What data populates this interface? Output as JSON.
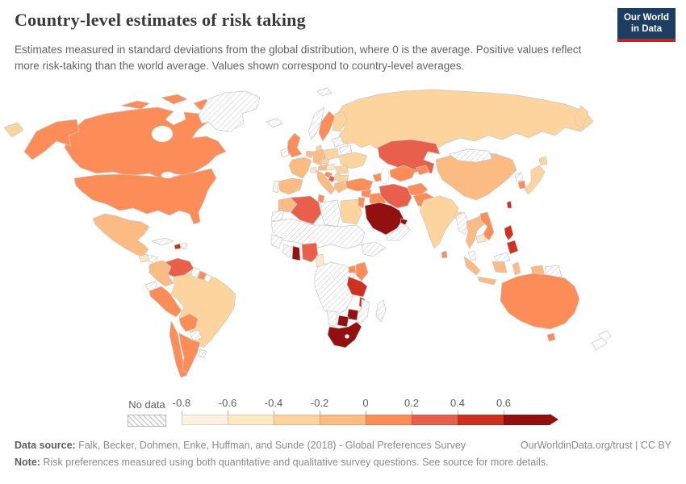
{
  "header": {
    "title": "Country-level estimates of risk taking",
    "subtitle": "Estimates measured in standard deviations from the global distribution, where 0 is the average. Positive values reflect more risk-taking than the world average. Values shown correspond to country-level averages."
  },
  "logo": {
    "line1": "Our World",
    "line2": "in Data",
    "bg": "#1d3d63",
    "accent": "#bf2624"
  },
  "legend": {
    "no_data_label": "No data",
    "ticks": [
      "-0.8",
      "-0.6",
      "-0.4",
      "-0.2",
      "0",
      "0.2",
      "0.4",
      "0.6"
    ]
  },
  "footer": {
    "source_label": "Data source:",
    "source_text": " Falk, Becker, Dohmen, Enke, Huffman, and Sunde (2018) - Global Preferences Survey",
    "attribution": "OurWorldinData.org/trust | CC BY",
    "note_label": "Note:",
    "note_text": " Risk preferences measured using both quantitative and qualitative survey questions. See source for more details."
  },
  "chart_data": {
    "type": "choropleth",
    "title": "Country-level estimates of risk taking",
    "unit": "standard deviations from the global average",
    "legend_ticks": [
      -0.8,
      -0.6,
      -0.4,
      -0.2,
      0,
      0.2,
      0.4,
      0.6
    ],
    "no_data": {
      "label": "No data",
      "pattern": "hatched"
    },
    "bins": [
      {
        "range": "-0.8 to -0.6",
        "color": "#fdf2e1"
      },
      {
        "range": "-0.6 to -0.4",
        "color": "#fde8c6"
      },
      {
        "range": "-0.4 to -0.2",
        "color": "#fdd49e"
      },
      {
        "range": "-0.2 to 0",
        "color": "#fdbb84"
      },
      {
        "range": "0 to 0.2",
        "color": "#fc8d59"
      },
      {
        "range": "0.2 to 0.4",
        "color": "#e8604c"
      },
      {
        "range": "0.4 to 0.6",
        "color": "#d0301f"
      },
      {
        "range": "more than 0.6",
        "color": "#931010"
      }
    ],
    "countries": [
      {
        "id": "canada",
        "name": "Canada",
        "bin": "0 to 0.2",
        "color": "#fc8d59"
      },
      {
        "id": "usa",
        "name": "United States",
        "bin": "0 to 0.2",
        "color": "#fc8d59"
      },
      {
        "id": "greenland",
        "name": "Greenland",
        "bin": "no-data",
        "color": "no-data"
      },
      {
        "id": "mexico",
        "name": "Mexico",
        "bin": "-0.2 to 0",
        "color": "#fdbb84"
      },
      {
        "id": "guatemala",
        "name": "Guatemala",
        "bin": "-0.6 to -0.4",
        "color": "#fde8c6"
      },
      {
        "id": "honduras",
        "name": "Honduras",
        "bin": "no-data",
        "color": "no-data"
      },
      {
        "id": "nicaragua",
        "name": "Nicaragua",
        "bin": "-0.6 to -0.4",
        "color": "#fde8c6"
      },
      {
        "id": "costa-rica",
        "name": "Costa Rica",
        "bin": "0.2 to 0.4",
        "color": "#e8604c"
      },
      {
        "id": "panama",
        "name": "Panama",
        "bin": "no-data",
        "color": "#ffffff"
      },
      {
        "id": "cuba",
        "name": "Cuba",
        "bin": "no-data",
        "color": "no-data"
      },
      {
        "id": "haiti",
        "name": "Haiti",
        "bin": "0.4 to 0.6",
        "color": "#d0301f"
      },
      {
        "id": "dominican-republic",
        "name": "Dominican Republic",
        "bin": "no-data",
        "color": "no-data"
      },
      {
        "id": "colombia",
        "name": "Colombia",
        "bin": "-0.2 to 0",
        "color": "#fdbb84"
      },
      {
        "id": "venezuela",
        "name": "Venezuela",
        "bin": "0.2 to 0.4",
        "color": "#e8604c"
      },
      {
        "id": "guyana",
        "name": "Guyana",
        "bin": "no-data",
        "color": "no-data"
      },
      {
        "id": "suriname",
        "name": "Suriname",
        "bin": "0 to 0.2",
        "color": "#fc8d59"
      },
      {
        "id": "french-guiana",
        "name": "French Guiana",
        "bin": "no-data",
        "color": "#ffffff"
      },
      {
        "id": "ecuador",
        "name": "Ecuador",
        "bin": "no-data",
        "color": "no-data"
      },
      {
        "id": "peru",
        "name": "Peru",
        "bin": "0 to 0.2",
        "color": "#fc8d59"
      },
      {
        "id": "brazil",
        "name": "Brazil",
        "bin": "-0.4 to -0.2",
        "color": "#fdd49e"
      },
      {
        "id": "bolivia",
        "name": "Bolivia",
        "bin": "0 to 0.2",
        "color": "#fc8d59"
      },
      {
        "id": "paraguay",
        "name": "Paraguay",
        "bin": "no-data",
        "color": "no-data"
      },
      {
        "id": "chile",
        "name": "Chile",
        "bin": "0 to 0.2",
        "color": "#fc8d59"
      },
      {
        "id": "argentina",
        "name": "Argentina",
        "bin": "0 to 0.2",
        "color": "#fc8d59"
      },
      {
        "id": "uruguay",
        "name": "Uruguay",
        "bin": "no-data",
        "color": "no-data"
      },
      {
        "id": "iceland",
        "name": "Iceland",
        "bin": "no-data",
        "color": "no-data"
      },
      {
        "id": "norway",
        "name": "Norway",
        "bin": "no-data",
        "color": "no-data"
      },
      {
        "id": "sweden",
        "name": "Sweden",
        "bin": "0 to 0.2",
        "color": "#fc8d59"
      },
      {
        "id": "finland",
        "name": "Finland",
        "bin": "-0.4 to -0.2",
        "color": "#fdd49e"
      },
      {
        "id": "uk",
        "name": "United Kingdom",
        "bin": "0 to 0.2",
        "color": "#fc8d59"
      },
      {
        "id": "ireland",
        "name": "Ireland",
        "bin": "no-data",
        "color": "no-data"
      },
      {
        "id": "denmark",
        "name": "Denmark",
        "bin": "-0.4 to -0.2",
        "color": "#fdd49e"
      },
      {
        "id": "germany",
        "name": "Germany",
        "bin": "-0.2 to 0",
        "color": "#fdbb84"
      },
      {
        "id": "benelux",
        "name": "Netherlands / Belgium",
        "bin": "-0.2 to 0",
        "color": "#fdbb84"
      },
      {
        "id": "france",
        "name": "France",
        "bin": "-0.2 to 0",
        "color": "#fdbb84"
      },
      {
        "id": "spain",
        "name": "Spain",
        "bin": "-0.2 to 0",
        "color": "#fdbb84"
      },
      {
        "id": "portugal",
        "name": "Portugal",
        "bin": "-0.8 to -0.6",
        "color": "#fdf2e1"
      },
      {
        "id": "italy",
        "name": "Italy",
        "bin": "-0.2 to 0",
        "color": "#fdbb84"
      },
      {
        "id": "switzerland",
        "name": "Switzerland",
        "bin": "-0.6 to -0.4",
        "color": "#fde8c6"
      },
      {
        "id": "austria",
        "name": "Austria",
        "bin": "-0.2 to 0",
        "color": "#fdbb84"
      },
      {
        "id": "czechia",
        "name": "Czechia",
        "bin": "-0.4 to -0.2",
        "color": "#fdd49e"
      },
      {
        "id": "poland",
        "name": "Poland",
        "bin": "-0.4 to -0.2",
        "color": "#fdd49e"
      },
      {
        "id": "baltics",
        "name": "Estonia / Latvia / Lithuania",
        "bin": "no-data",
        "color": "no-data"
      },
      {
        "id": "belarus",
        "name": "Belarus",
        "bin": "no-data",
        "color": "no-data"
      },
      {
        "id": "ukraine",
        "name": "Ukraine",
        "bin": "-0.4 to -0.2",
        "color": "#fdd49e"
      },
      {
        "id": "romania",
        "name": "Romania",
        "bin": "-0.4 to -0.2",
        "color": "#fdd49e"
      },
      {
        "id": "hungary",
        "name": "Hungary",
        "bin": "-0.6 to -0.4",
        "color": "#fde8c6"
      },
      {
        "id": "croatia",
        "name": "Croatia",
        "bin": "0 to 0.2",
        "color": "#fc8d59"
      },
      {
        "id": "bosnia",
        "name": "Bosnia and Herzegovina",
        "bin": "0.2 to 0.4",
        "color": "#e8604c"
      },
      {
        "id": "serbia",
        "name": "Serbia",
        "bin": "-0.4 to -0.2",
        "color": "#fdd49e"
      },
      {
        "id": "bulgaria",
        "name": "Bulgaria",
        "bin": "-0.4 to -0.2",
        "color": "#fdd49e"
      },
      {
        "id": "greece",
        "name": "Greece",
        "bin": "-0.2 to 0",
        "color": "#fdbb84"
      },
      {
        "id": "russia",
        "name": "Russia",
        "bin": "-0.4 to -0.2",
        "color": "#fdd49e"
      },
      {
        "id": "kazakhstan",
        "name": "Kazakhstan",
        "bin": "0.2 to 0.4",
        "color": "#e8604c"
      },
      {
        "id": "uzbek-turkmen",
        "name": "Uzbekistan / Turkmenistan",
        "bin": "0 to 0.2",
        "color": "#fc8d59"
      },
      {
        "id": "kyrgyz-tajik",
        "name": "Kyrgyzstan / Tajikistan",
        "bin": "0 to 0.2",
        "color": "#fc8d59"
      },
      {
        "id": "caucasus",
        "name": "Georgia / Armenia / Azerbaijan",
        "bin": "0 to 0.2",
        "color": "#fc8d59"
      },
      {
        "id": "turkey",
        "name": "Turkey",
        "bin": "0 to 0.2",
        "color": "#fc8d59"
      },
      {
        "id": "syria",
        "name": "Syria",
        "bin": "0 to 0.2",
        "color": "#fc8d59"
      },
      {
        "id": "israel-jordan",
        "name": "Israel / Jordan",
        "bin": "0 to 0.2",
        "color": "#fc8d59"
      },
      {
        "id": "iraq",
        "name": "Iraq",
        "bin": "0 to 0.2",
        "color": "#fc8d59"
      },
      {
        "id": "saudi-arabia",
        "name": "Saudi Arabia",
        "bin": "more than 0.6",
        "color": "#931010"
      },
      {
        "id": "uae",
        "name": "United Arab Emirates",
        "bin": "more than 0.6",
        "color": "#931010"
      },
      {
        "id": "yemen-oman",
        "name": "Yemen / Oman",
        "bin": "no-data",
        "color": "no-data"
      },
      {
        "id": "iran",
        "name": "Iran",
        "bin": "0.2 to 0.4",
        "color": "#e8604c"
      },
      {
        "id": "afghanistan",
        "name": "Afghanistan",
        "bin": "0 to 0.2",
        "color": "#fc8d59"
      },
      {
        "id": "pakistan",
        "name": "Pakistan",
        "bin": "0 to 0.2",
        "color": "#fc8d59"
      },
      {
        "id": "india",
        "name": "India",
        "bin": "-0.4 to -0.2",
        "color": "#fdd49e"
      },
      {
        "id": "bangladesh",
        "name": "Bangladesh",
        "bin": "-0.4 to -0.2",
        "color": "#fdd49e"
      },
      {
        "id": "sri-lanka",
        "name": "Sri Lanka",
        "bin": "0 to 0.2",
        "color": "#fc8d59"
      },
      {
        "id": "china",
        "name": "China",
        "bin": "-0.2 to 0",
        "color": "#fdbb84"
      },
      {
        "id": "mongolia",
        "name": "Mongolia",
        "bin": "no-data",
        "color": "no-data"
      },
      {
        "id": "north-korea",
        "name": "North Korea",
        "bin": "no-data",
        "color": "no-data"
      },
      {
        "id": "south-korea",
        "name": "South Korea",
        "bin": "0 to 0.2",
        "color": "#fc8d59"
      },
      {
        "id": "japan",
        "name": "Japan",
        "bin": "-0.4 to -0.2",
        "color": "#fdd49e"
      },
      {
        "id": "taiwan",
        "name": "Taiwan",
        "bin": "0.4 to 0.6",
        "color": "#d0301f"
      },
      {
        "id": "myanmar",
        "name": "Myanmar",
        "bin": "no-data",
        "color": "no-data"
      },
      {
        "id": "thailand",
        "name": "Thailand",
        "bin": "-0.2 to 0",
        "color": "#fdbb84"
      },
      {
        "id": "laos",
        "name": "Laos",
        "bin": "-0.2 to 0",
        "color": "#fdbb84"
      },
      {
        "id": "vietnam",
        "name": "Vietnam",
        "bin": "0 to 0.2",
        "color": "#fc8d59"
      },
      {
        "id": "cambodia",
        "name": "Cambodia",
        "bin": "-0.6 to -0.4",
        "color": "#fde8c6"
      },
      {
        "id": "malaysia",
        "name": "Malaysia",
        "bin": "no-data",
        "color": "no-data"
      },
      {
        "id": "indonesia",
        "name": "Indonesia",
        "bin": "-0.2 to 0",
        "color": "#fdbb84"
      },
      {
        "id": "png",
        "name": "Papua New Guinea",
        "bin": "no-data",
        "color": "no-data"
      },
      {
        "id": "philippines",
        "name": "Philippines",
        "bin": "0.4 to 0.6",
        "color": "#d0301f"
      },
      {
        "id": "australia",
        "name": "Australia",
        "bin": "0 to 0.2",
        "color": "#fc8d59"
      },
      {
        "id": "new-zealand",
        "name": "New Zealand",
        "bin": "no-data",
        "color": "#ffffff"
      },
      {
        "id": "morocco",
        "name": "Morocco",
        "bin": "-0.2 to 0",
        "color": "#fdbb84"
      },
      {
        "id": "western-sahara",
        "name": "Western Sahara",
        "bin": "no-data",
        "color": "no-data"
      },
      {
        "id": "algeria",
        "name": "Algeria",
        "bin": "0.2 to 0.4",
        "color": "#e8604c"
      },
      {
        "id": "tunisia",
        "name": "Tunisia",
        "bin": "0 to 0.2",
        "color": "#fc8d59"
      },
      {
        "id": "libya",
        "name": "Libya",
        "bin": "no-data",
        "color": "no-data"
      },
      {
        "id": "egypt",
        "name": "Egypt",
        "bin": "-0.4 to -0.2",
        "color": "#fdd49e"
      },
      {
        "id": "sahel",
        "name": "Mauritania / Mali / Niger / Chad / Sudan",
        "bin": "no-data",
        "color": "no-data"
      },
      {
        "id": "senegal-guinea",
        "name": "Senegal / Guinea",
        "bin": "no-data",
        "color": "no-data"
      },
      {
        "id": "ivory-coast",
        "name": "Côte d'Ivoire",
        "bin": "no-data",
        "color": "no-data"
      },
      {
        "id": "ghana",
        "name": "Ghana",
        "bin": "more than 0.6",
        "color": "#931010"
      },
      {
        "id": "nigeria",
        "name": "Nigeria",
        "bin": "0.2 to 0.4",
        "color": "#e8604c"
      },
      {
        "id": "cameroon",
        "name": "Cameroon",
        "bin": "-0.6 to -0.4",
        "color": "#fde8c6"
      },
      {
        "id": "central-africa",
        "name": "DR Congo / Central Africa / Angola / Zambia",
        "bin": "no-data",
        "color": "no-data"
      },
      {
        "id": "ethiopia-somalia",
        "name": "Ethiopia / Somalia",
        "bin": "no-data",
        "color": "no-data"
      },
      {
        "id": "uganda",
        "name": "Uganda",
        "bin": "0 to 0.2",
        "color": "#fc8d59"
      },
      {
        "id": "kenya",
        "name": "Kenya",
        "bin": "0 to 0.2",
        "color": "#fc8d59"
      },
      {
        "id": "tanzania",
        "name": "Tanzania",
        "bin": "0.4 to 0.6",
        "color": "#d0301f"
      },
      {
        "id": "malawi",
        "name": "Malawi",
        "bin": "0.4 to 0.6",
        "color": "#d0301f"
      },
      {
        "id": "mozambique",
        "name": "Mozambique",
        "bin": "no-data",
        "color": "no-data"
      },
      {
        "id": "zimbabwe",
        "name": "Zimbabwe",
        "bin": "more than 0.6",
        "color": "#931010"
      },
      {
        "id": "botswana",
        "name": "Botswana",
        "bin": "more than 0.6",
        "color": "#931010"
      },
      {
        "id": "namibia",
        "name": "Namibia",
        "bin": "no-data",
        "color": "no-data"
      },
      {
        "id": "south-africa",
        "name": "South Africa",
        "bin": "more than 0.6",
        "color": "#931010"
      },
      {
        "id": "madagascar",
        "name": "Madagascar",
        "bin": "no-data",
        "color": "no-data"
      }
    ]
  }
}
